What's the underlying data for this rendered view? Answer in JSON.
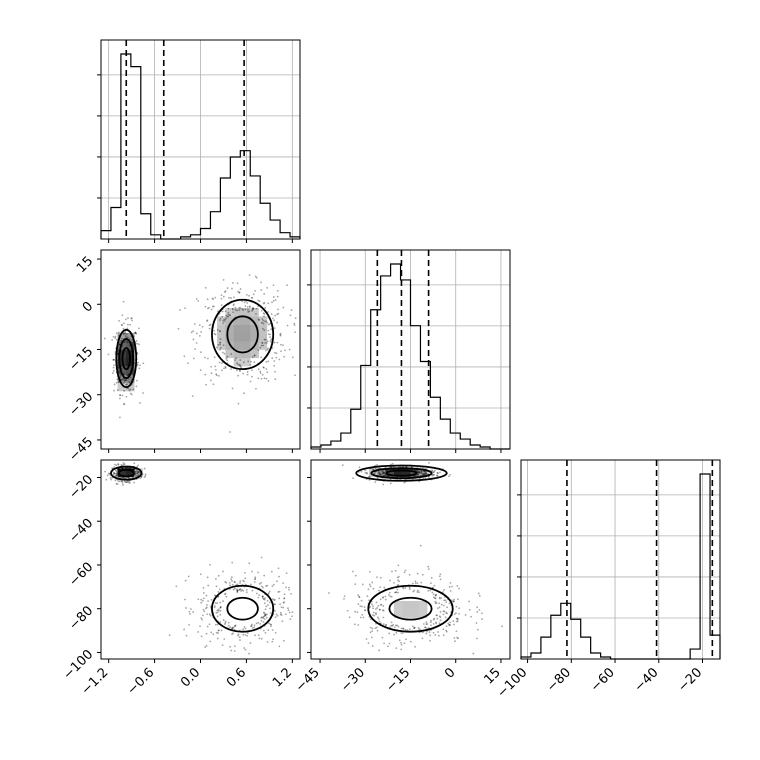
{
  "chart_data": {
    "type": "corner",
    "grid": true,
    "params": [
      {
        "id": "p0",
        "range": [
          -1.3,
          1.3
        ],
        "ticks": [
          -1.2,
          -0.6,
          0.0,
          0.6,
          1.2
        ],
        "tick_labels": [
          "−1.2",
          "−0.6",
          "0.0",
          "0.6",
          "1.2"
        ],
        "quantile_lines": [
          -0.97,
          -0.48,
          0.57
        ],
        "histogram": {
          "edges": [
            -1.3,
            -1.17,
            -1.04,
            -0.91,
            -0.78,
            -0.65,
            -0.52,
            -0.39,
            -0.26,
            -0.13,
            0.0,
            0.13,
            0.26,
            0.39,
            0.52,
            0.65,
            0.78,
            0.91,
            1.04,
            1.17,
            1.3
          ],
          "counts": [
            0.04,
            0.15,
            0.88,
            0.82,
            0.12,
            0.02,
            0,
            0,
            0.01,
            0.02,
            0.05,
            0.13,
            0.29,
            0.39,
            0.42,
            0.3,
            0.17,
            0.09,
            0.03,
            0.01
          ]
        }
      },
      {
        "id": "p1",
        "range": [
          -48,
          18
        ],
        "ticks": [
          -45,
          -30,
          -15,
          0,
          15
        ],
        "tick_labels": [
          "−45",
          "−30",
          "−15",
          "0",
          "15"
        ],
        "quantile_lines": [
          -26,
          -18,
          -9
        ],
        "histogram": {
          "edges": [
            -48,
            -44.7,
            -41.4,
            -38.1,
            -34.8,
            -31.5,
            -28.2,
            -24.9,
            -21.6,
            -18.3,
            -15,
            -11.7,
            -8.4,
            -5.1,
            -1.8,
            1.5,
            4.8,
            8.1,
            11.4,
            14.7,
            18
          ],
          "counts": [
            0.01,
            0.02,
            0.04,
            0.08,
            0.2,
            0.42,
            0.7,
            0.87,
            0.93,
            0.85,
            0.62,
            0.44,
            0.26,
            0.15,
            0.08,
            0.05,
            0.02,
            0.01,
            0,
            0
          ]
        }
      },
      {
        "id": "p2",
        "range": [
          -103,
          -12
        ],
        "ticks": [
          -100,
          -80,
          -60,
          -40,
          -20
        ],
        "tick_labels": [
          "−100",
          "−80",
          "−60",
          "−40",
          "−20"
        ],
        "quantile_lines": [
          -82,
          -41,
          -15.5
        ],
        "histogram": {
          "edges": [
            -103,
            -98.45,
            -93.9,
            -89.35,
            -84.8,
            -80.25,
            -75.7,
            -71.15,
            -66.6,
            -62.05,
            -57.5,
            -52.95,
            -48.4,
            -43.85,
            -39.3,
            -34.75,
            -30.2,
            -25.65,
            -21.1,
            -16.55,
            -12
          ],
          "counts": [
            0.01,
            0.03,
            0.11,
            0.22,
            0.28,
            0.2,
            0.11,
            0.03,
            0.01,
            0,
            0,
            0,
            0,
            0,
            0,
            0,
            0,
            0.05,
            0.93,
            0.12
          ]
        }
      }
    ],
    "pairs": [
      {
        "x": "p0",
        "y": "p1",
        "clusters": [
          {
            "center": [
              -0.97,
              -18
            ],
            "sigma": [
              0.07,
              5.0
            ],
            "weight": 0.42,
            "contours": [
              [
                0.05,
                3.5
              ],
              [
                0.09,
                6.5
              ],
              [
                0.13,
                9.5
              ]
            ]
          },
          {
            "center": [
              0.55,
              -10
            ],
            "sigma": [
              0.25,
              7.0
            ],
            "weight": 0.58,
            "contours": [
              [
                0.2,
                6.0
              ],
              [
                0.4,
                11.5
              ]
            ]
          }
        ]
      },
      {
        "x": "p0",
        "y": "p2",
        "clusters": [
          {
            "center": [
              -0.97,
              -18
            ],
            "sigma": [
              0.08,
              1.5
            ],
            "weight": 0.42,
            "contours": [
              [
                0.1,
                1.5
              ],
              [
                0.2,
                3.0
              ]
            ]
          },
          {
            "center": [
              0.55,
              -80
            ],
            "sigma": [
              0.25,
              7.0
            ],
            "weight": 0.58,
            "contours": [
              [
                0.2,
                5.0
              ],
              [
                0.4,
                10.5
              ]
            ]
          }
        ]
      },
      {
        "x": "p1",
        "y": "p2",
        "clusters": [
          {
            "center": [
              -18,
              -18
            ],
            "sigma": [
              5.0,
              1.5
            ],
            "weight": 0.42,
            "contours": [
              [
                5.0,
                1.2
              ],
              [
                10.0,
                2.3
              ],
              [
                15.0,
                3.5
              ]
            ]
          },
          {
            "center": [
              -15,
              -80
            ],
            "sigma": [
              8.0,
              7.0
            ],
            "weight": 0.58,
            "contours": [
              [
                7.0,
                5.0
              ],
              [
                14.0,
                10.5
              ]
            ]
          }
        ]
      }
    ]
  }
}
